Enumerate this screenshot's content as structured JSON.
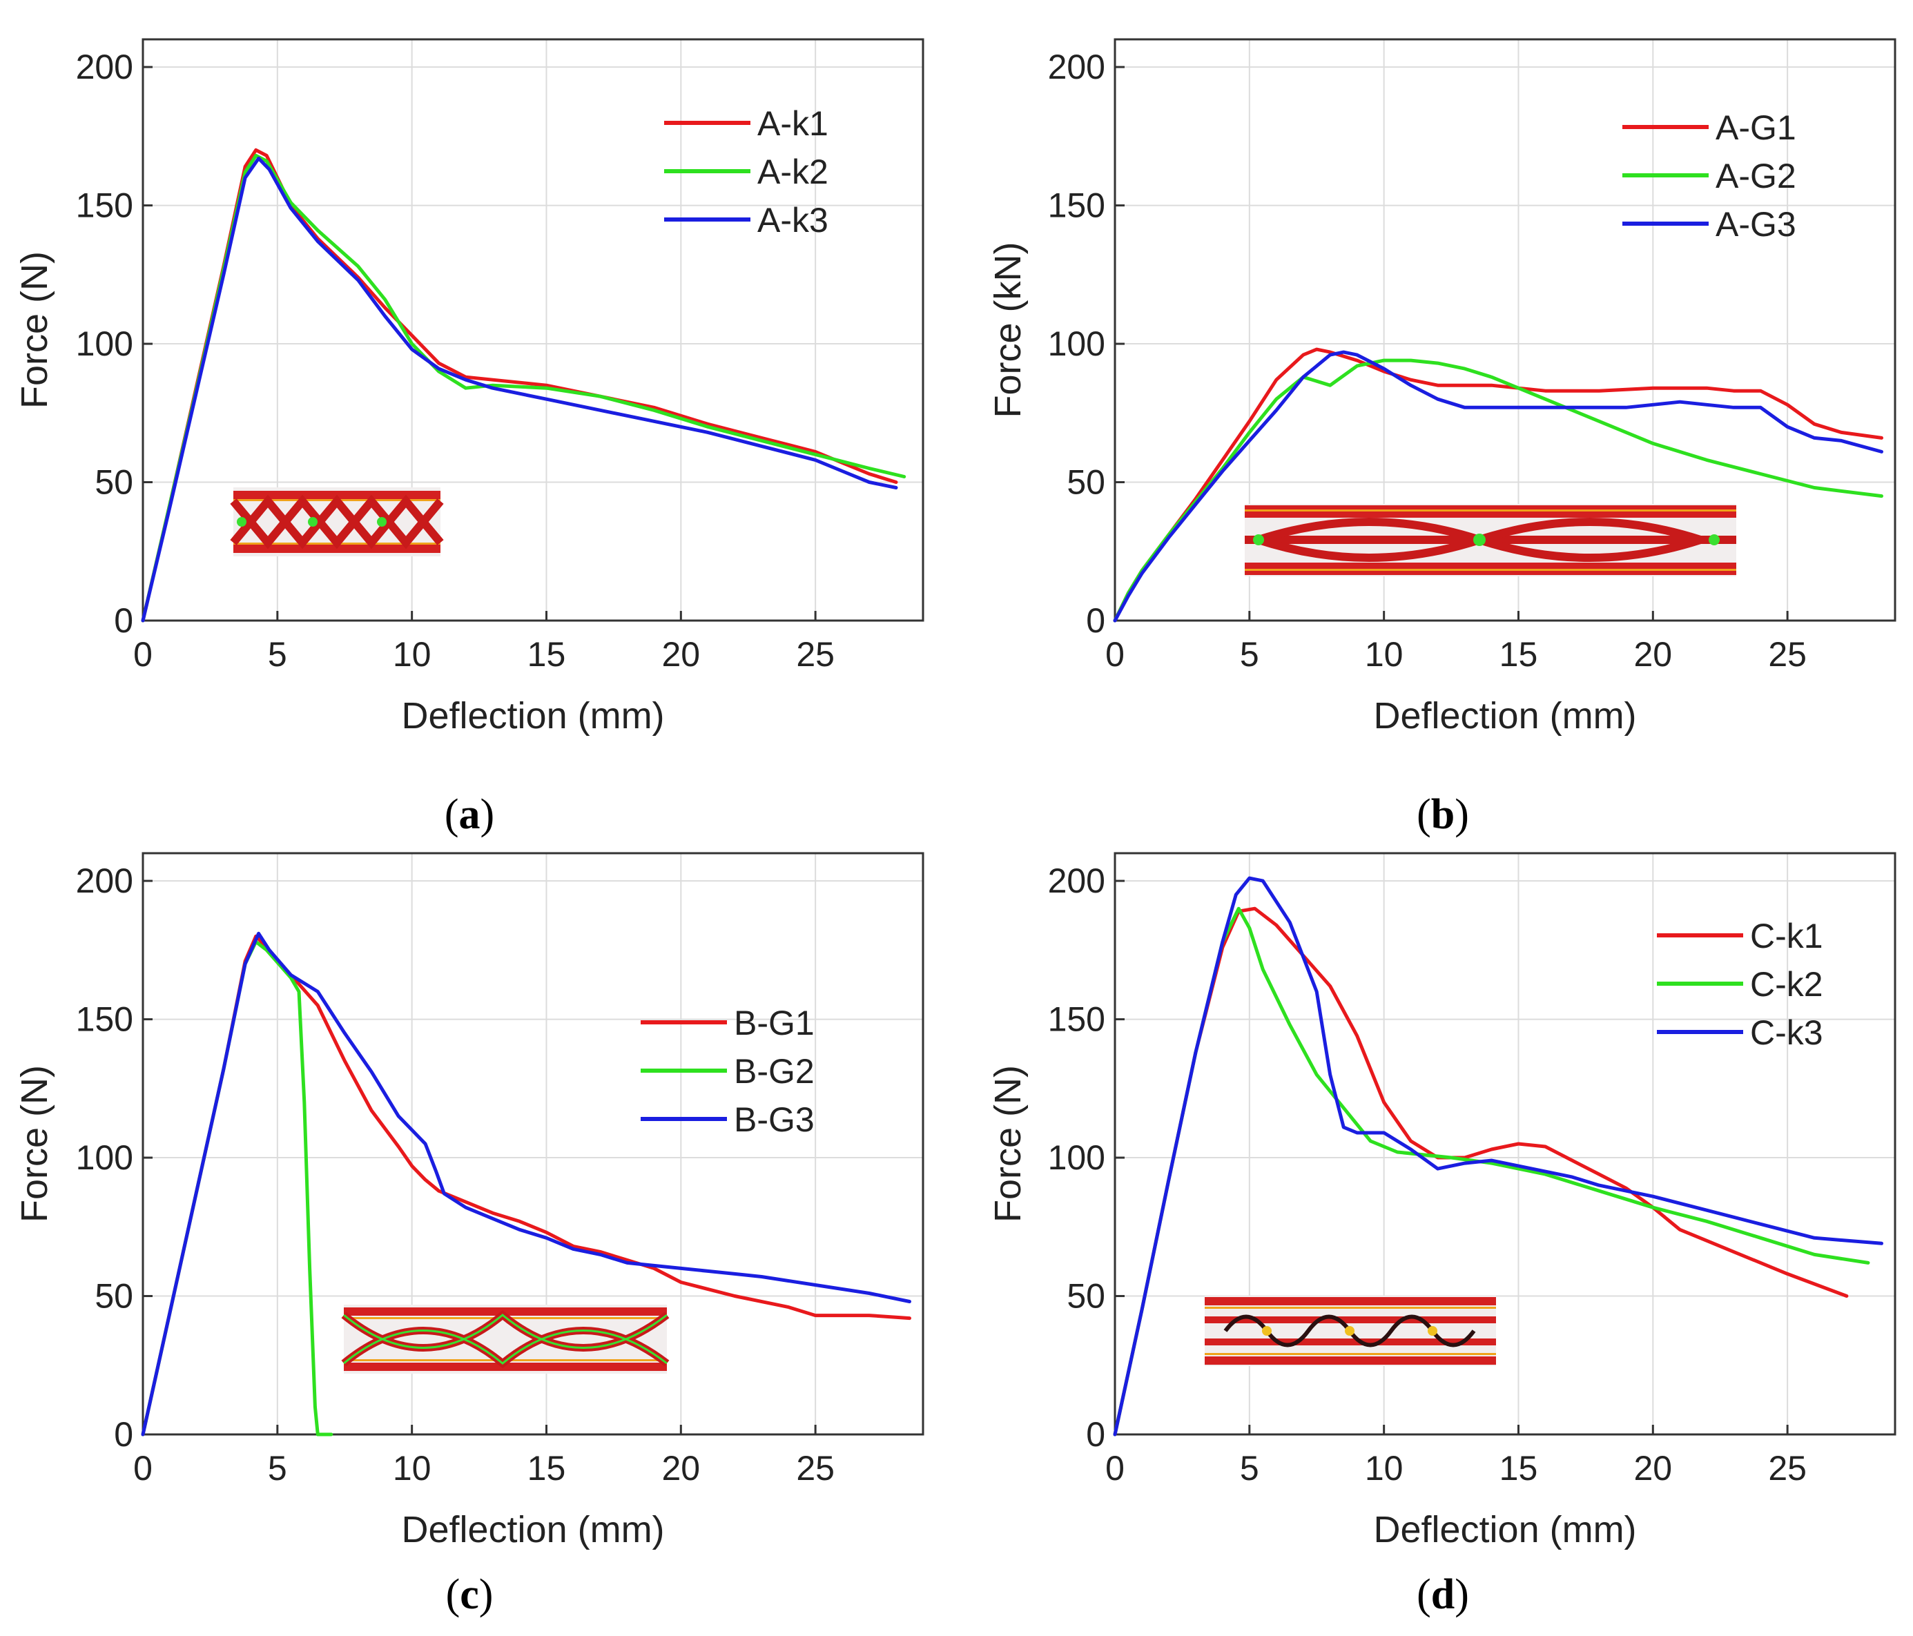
{
  "colors": {
    "red": "#e8191c",
    "green": "#2ee01f",
    "blue": "#1a1ee0"
  },
  "chart_data": [
    {
      "panel": "a",
      "caption": {
        "open": "(",
        "letter": "a",
        "close": ")"
      },
      "type": "line",
      "xlabel": "Deflection (mm)",
      "ylabel": "Force (N)",
      "xlim": [
        0,
        29
      ],
      "ylim": [
        0,
        210
      ],
      "xticks": [
        0,
        5,
        10,
        15,
        20,
        25
      ],
      "yticks": [
        0,
        50,
        100,
        150,
        200
      ],
      "legend_position": "top-right",
      "inset": "gyroid-a",
      "series": [
        {
          "name": "A-k1",
          "color": "red",
          "x": [
            0,
            1,
            2,
            3,
            3.8,
            4.2,
            4.6,
            5.5,
            6.5,
            8,
            9,
            10,
            11,
            12,
            13,
            15,
            17,
            19,
            21,
            23,
            25,
            27,
            28
          ],
          "y": [
            0,
            42,
            85,
            128,
            164,
            170,
            168,
            150,
            138,
            124,
            113,
            103,
            93,
            88,
            87,
            85,
            81,
            77,
            71,
            66,
            61,
            53,
            50
          ]
        },
        {
          "name": "A-k2",
          "color": "green",
          "x": [
            0,
            1,
            2,
            3,
            3.8,
            4.2,
            4.6,
            5.5,
            6.5,
            8,
            9,
            10,
            11,
            12,
            13,
            15,
            17,
            19,
            21,
            23,
            25,
            27,
            28.3
          ],
          "y": [
            0,
            42,
            84,
            127,
            162,
            168,
            166,
            151,
            141,
            128,
            116,
            100,
            90,
            84,
            85,
            84,
            81,
            76,
            70,
            65,
            60,
            55,
            52
          ]
        },
        {
          "name": "A-k3",
          "color": "blue",
          "x": [
            0,
            1,
            2,
            3,
            3.8,
            4.3,
            4.7,
            5.5,
            6.5,
            8,
            9,
            10,
            11,
            12,
            13,
            15,
            17,
            19,
            21,
            23,
            25,
            26,
            27,
            28
          ],
          "y": [
            0,
            41,
            83,
            125,
            160,
            167,
            163,
            149,
            137,
            123,
            110,
            98,
            91,
            87,
            84,
            80,
            76,
            72,
            68,
            63,
            58,
            54,
            50,
            48
          ]
        }
      ]
    },
    {
      "panel": "b",
      "caption": {
        "open": "(",
        "letter": "b",
        "close": ")"
      },
      "type": "line",
      "xlabel": "Deflection (mm)",
      "ylabel": "Force (kN)",
      "xlim": [
        0,
        29
      ],
      "ylim": [
        0,
        210
      ],
      "xticks": [
        0,
        5,
        10,
        15,
        20,
        25
      ],
      "yticks": [
        0,
        50,
        100,
        150,
        200
      ],
      "legend_position": "top-right",
      "inset": "gyroid-b",
      "series": [
        {
          "name": "A-G1",
          "color": "red",
          "x": [
            0,
            0.5,
            1,
            2,
            3,
            4,
            5,
            6,
            7,
            7.5,
            8,
            9,
            10,
            11,
            12,
            14,
            16,
            18,
            20,
            22,
            23,
            24,
            25,
            26,
            27,
            28.5
          ],
          "y": [
            0,
            10,
            18,
            31,
            44,
            58,
            72,
            87,
            96,
            98,
            97,
            94,
            90,
            87,
            85,
            85,
            83,
            83,
            84,
            84,
            83,
            83,
            78,
            71,
            68,
            66
          ]
        },
        {
          "name": "A-G2",
          "color": "green",
          "x": [
            0,
            0.5,
            1,
            2,
            3,
            4,
            5,
            6,
            7,
            8,
            9,
            10,
            11,
            12,
            13,
            14,
            15,
            16,
            18,
            20,
            22,
            24,
            26,
            28.5
          ],
          "y": [
            0,
            10,
            18,
            31,
            43,
            55,
            68,
            80,
            88,
            85,
            92,
            94,
            94,
            93,
            91,
            88,
            84,
            80,
            72,
            64,
            58,
            53,
            48,
            45
          ]
        },
        {
          "name": "A-G3",
          "color": "blue",
          "x": [
            0,
            0.5,
            1,
            2,
            3,
            4,
            5,
            6,
            7,
            8,
            8.5,
            9,
            10,
            11,
            12,
            13,
            14,
            15,
            17,
            19,
            20,
            21,
            22,
            23,
            24,
            25,
            26,
            27,
            28.5
          ],
          "y": [
            0,
            9,
            17,
            30,
            42,
            54,
            65,
            76,
            88,
            96,
            97,
            96,
            91,
            85,
            80,
            77,
            77,
            77,
            77,
            77,
            78,
            79,
            78,
            77,
            77,
            70,
            66,
            65,
            61
          ]
        }
      ]
    },
    {
      "panel": "c",
      "caption": {
        "open": "(",
        "letter": "c",
        "close": ")"
      },
      "type": "line",
      "xlabel": "Deflection (mm)",
      "ylabel": "Force (N)",
      "xlim": [
        0,
        29
      ],
      "ylim": [
        0,
        210
      ],
      "xticks": [
        0,
        5,
        10,
        15,
        20,
        25
      ],
      "yticks": [
        0,
        50,
        100,
        150,
        200
      ],
      "legend_position": "center-right",
      "inset": "gyroid-c",
      "series": [
        {
          "name": "B-G1",
          "color": "red",
          "x": [
            0,
            1,
            2,
            3,
            3.8,
            4.2,
            4.6,
            5.5,
            6.5,
            7.5,
            8.5,
            9.5,
            10,
            10.5,
            11,
            12,
            13,
            14,
            15,
            16,
            17,
            18,
            19,
            20,
            22,
            24,
            25,
            26,
            27,
            28.5
          ],
          "y": [
            0,
            44,
            88,
            132,
            171,
            180,
            176,
            166,
            155,
            135,
            117,
            104,
            97,
            92,
            88,
            84,
            80,
            77,
            73,
            68,
            66,
            63,
            60,
            55,
            50,
            46,
            43,
            43,
            43,
            42
          ]
        },
        {
          "name": "B-G2",
          "color": "green",
          "x": [
            0,
            1,
            2,
            3,
            3.8,
            4.2,
            4.6,
            5.5,
            5.8,
            6.0,
            6.2,
            6.4,
            6.5,
            7.0
          ],
          "y": [
            0,
            44,
            88,
            132,
            170,
            178,
            175,
            165,
            160,
            120,
            60,
            10,
            0,
            0
          ]
        },
        {
          "name": "B-G3",
          "color": "blue",
          "x": [
            0,
            1,
            2,
            3,
            3.8,
            4.3,
            4.7,
            5.5,
            6.5,
            7.5,
            8.5,
            9.5,
            10.5,
            10.9,
            11.2,
            12,
            13,
            14,
            15,
            16,
            17,
            18,
            19,
            20,
            21,
            22,
            23,
            25,
            27,
            28.5
          ],
          "y": [
            0,
            44,
            88,
            132,
            170,
            181,
            175,
            166,
            160,
            145,
            131,
            115,
            105,
            95,
            87,
            82,
            78,
            74,
            71,
            67,
            65,
            62,
            61,
            60,
            59,
            58,
            57,
            54,
            51,
            48
          ]
        }
      ]
    },
    {
      "panel": "d",
      "caption": {
        "open": "(",
        "letter": "d",
        "close": ")"
      },
      "type": "line",
      "xlabel": "Deflection (mm)",
      "ylabel": "Force (N)",
      "xlim": [
        0,
        29
      ],
      "ylim": [
        0,
        210
      ],
      "xticks": [
        0,
        5,
        10,
        15,
        20,
        25
      ],
      "yticks": [
        0,
        50,
        100,
        150,
        200
      ],
      "legend_position": "top-right",
      "inset": "gyroid-d",
      "series": [
        {
          "name": "C-k1",
          "color": "red",
          "x": [
            0,
            1,
            2,
            3,
            4,
            4.6,
            5.2,
            6,
            7,
            8,
            9,
            10,
            11,
            12,
            13,
            14,
            15,
            16,
            17,
            18,
            19,
            20,
            21,
            22,
            23,
            25,
            27.2
          ],
          "y": [
            0,
            45,
            92,
            138,
            176,
            189,
            190,
            184,
            173,
            162,
            144,
            120,
            106,
            100,
            100,
            103,
            105,
            104,
            99,
            94,
            89,
            82,
            74,
            70,
            66,
            58,
            50
          ]
        },
        {
          "name": "C-k2",
          "color": "green",
          "x": [
            0,
            1,
            2,
            3,
            4,
            4.6,
            5.0,
            5.5,
            6.5,
            7.5,
            8.5,
            9.5,
            10.5,
            11.5,
            12.5,
            14,
            16,
            18,
            20,
            22,
            24,
            26,
            28
          ],
          "y": [
            0,
            45,
            92,
            138,
            178,
            190,
            183,
            168,
            148,
            130,
            118,
            106,
            102,
            101,
            100,
            98,
            94,
            88,
            82,
            77,
            71,
            65,
            62
          ]
        },
        {
          "name": "C-k3",
          "color": "blue",
          "x": [
            0,
            1,
            2,
            3,
            4,
            4.5,
            5,
            5.5,
            6.5,
            7.5,
            8,
            8.5,
            9,
            10,
            11,
            12,
            13,
            14,
            15,
            16,
            17,
            18,
            20,
            22,
            24,
            26,
            28.5
          ],
          "y": [
            0,
            45,
            92,
            138,
            178,
            195,
            201,
            200,
            185,
            160,
            130,
            111,
            109,
            109,
            103,
            96,
            98,
            99,
            97,
            95,
            93,
            90,
            86,
            81,
            76,
            71,
            69
          ]
        }
      ]
    }
  ]
}
